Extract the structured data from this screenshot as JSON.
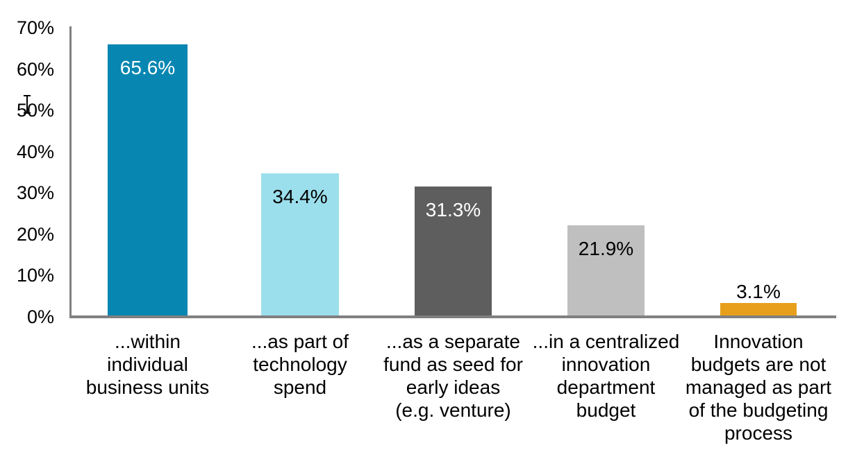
{
  "chart_data": {
    "type": "bar",
    "title": "",
    "xlabel": "",
    "ylabel": "",
    "ylim": [
      0,
      70
    ],
    "grid": "off",
    "legend": "none",
    "axis_color": "#808080",
    "y_axis": {
      "tick_labels": [
        "70%",
        "60%",
        "50%",
        "40%",
        "30%",
        "20%",
        "10%",
        "0%"
      ]
    },
    "categories": [
      "...within individual business units",
      "...as part of technology spend",
      "...as a separate fund as seed for early ideas (e.g. venture)",
      "...in a centralized innovation department budget",
      "Innovation budgets are not managed as part of the budgeting process"
    ],
    "values": [
      65.6,
      34.4,
      31.3,
      21.9,
      3.1
    ],
    "bars": [
      {
        "category_wrapped": "...within\nindividual\nbusiness units",
        "value": 65.6,
        "value_label": "65.6%",
        "color": "#0786B2",
        "value_label_color": "#FFFFFF",
        "value_label_position": "inside"
      },
      {
        "category_wrapped": "...as part of\ntechnology\nspend",
        "value": 34.4,
        "value_label": "34.4%",
        "color": "#9CDFEC",
        "value_label_color": "#000000",
        "value_label_position": "inside"
      },
      {
        "category_wrapped": "...as a separate\nfund as seed for\nearly ideas\n(e.g. venture)",
        "value": 31.3,
        "value_label": "31.3%",
        "color": "#5E5E5E",
        "value_label_color": "#FFFFFF",
        "value_label_position": "inside"
      },
      {
        "category_wrapped": "...in a centralized\ninnovation\ndepartment\nbudget",
        "value": 21.9,
        "value_label": "21.9%",
        "color": "#BFBFBF",
        "value_label_color": "#000000",
        "value_label_position": "inside"
      },
      {
        "category_wrapped": "Innovation\nbudgets are not\nmanaged as part\nof the budgeting\nprocess",
        "value": 3.1,
        "value_label": "3.1%",
        "color": "#E8A01C",
        "value_label_color": "#000000",
        "value_label_position": "above"
      }
    ]
  }
}
